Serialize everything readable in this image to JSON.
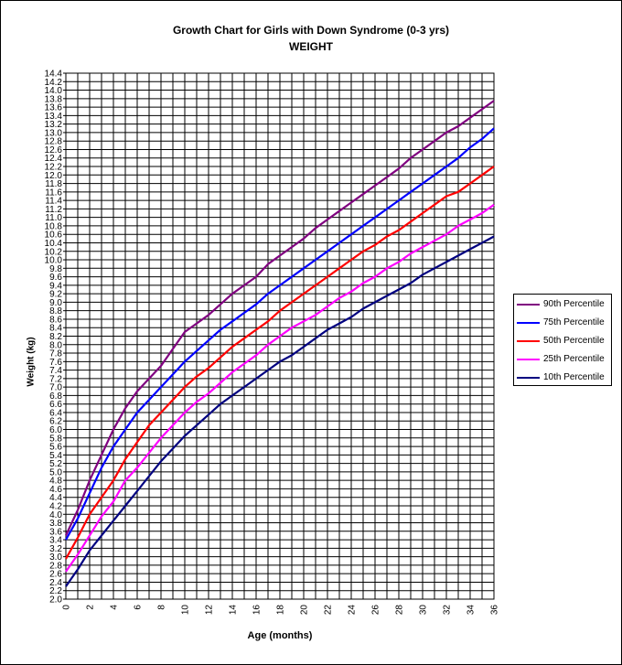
{
  "chart_data": {
    "type": "line",
    "title": "Growth Chart for Girls with Down Syndrome (0-3 yrs)",
    "subtitle": "WEIGHT",
    "xlabel": "Age (months)",
    "ylabel": "Weight  (kg)",
    "xlim": [
      0,
      36
    ],
    "ylim": [
      2.0,
      14.4
    ],
    "xticks": [
      0,
      2,
      4,
      6,
      8,
      10,
      12,
      14,
      16,
      18,
      20,
      22,
      24,
      26,
      28,
      30,
      32,
      34,
      36
    ],
    "yticks": [
      "2.0",
      "2.2",
      "2.4",
      "2.6",
      "2.8",
      "3.0",
      "3.2",
      "3.4",
      "3.6",
      "3.8",
      "4.0",
      "4.2",
      "4.4",
      "4.6",
      "4.8",
      "5.0",
      "5.2",
      "5.4",
      "5.6",
      "5.8",
      "6.0",
      "6.2",
      "6.4",
      "6.6",
      "6.8",
      "7.0",
      "7.2",
      "7.4",
      "7.6",
      "7.8",
      "8.0",
      "8.2",
      "8.4",
      "8.6",
      "8.8",
      "9.0",
      "9.2",
      "9.4",
      "9.6",
      "9.8",
      "10.0",
      "10.2",
      "10.4",
      "10.6",
      "10.8",
      "11.0",
      "11.2",
      "11.4",
      "11.6",
      "11.8",
      "12.0",
      "12.2",
      "12.4",
      "12.6",
      "12.8",
      "13.0",
      "13.2",
      "13.4",
      "13.6",
      "13.8",
      "14.0",
      "14.2",
      "14.4"
    ],
    "grid": true,
    "legend_position": "right",
    "x": [
      0,
      1,
      2,
      3,
      4,
      5,
      6,
      7,
      8,
      9,
      10,
      11,
      12,
      13,
      14,
      15,
      16,
      17,
      18,
      19,
      20,
      21,
      22,
      23,
      24,
      25,
      26,
      27,
      28,
      29,
      30,
      31,
      32,
      33,
      34,
      35,
      36
    ],
    "series": [
      {
        "name": "90th Percentile",
        "color": "#800080",
        "values": [
          3.5,
          4.1,
          4.8,
          5.4,
          6.0,
          6.5,
          6.9,
          7.2,
          7.5,
          7.9,
          8.3,
          8.5,
          8.7,
          8.95,
          9.2,
          9.4,
          9.6,
          9.9,
          10.1,
          10.3,
          10.5,
          10.75,
          10.95,
          11.15,
          11.35,
          11.55,
          11.75,
          11.95,
          12.15,
          12.4,
          12.6,
          12.8,
          13.0,
          13.15,
          13.35,
          13.55,
          13.75
        ]
      },
      {
        "name": "75th Percentile",
        "color": "#0000ff",
        "values": [
          3.4,
          3.9,
          4.5,
          5.1,
          5.6,
          6.0,
          6.4,
          6.7,
          7.0,
          7.3,
          7.6,
          7.85,
          8.1,
          8.35,
          8.55,
          8.75,
          8.95,
          9.2,
          9.4,
          9.6,
          9.8,
          10.0,
          10.2,
          10.4,
          10.6,
          10.8,
          11.0,
          11.2,
          11.4,
          11.6,
          11.8,
          12.0,
          12.2,
          12.4,
          12.65,
          12.85,
          13.1
        ]
      },
      {
        "name": "50th Percentile",
        "color": "#ff0000",
        "values": [
          2.95,
          3.45,
          4.0,
          4.4,
          4.8,
          5.3,
          5.7,
          6.1,
          6.4,
          6.7,
          7.0,
          7.25,
          7.45,
          7.7,
          7.95,
          8.15,
          8.35,
          8.55,
          8.8,
          9.0,
          9.2,
          9.4,
          9.6,
          9.8,
          10.0,
          10.2,
          10.35,
          10.55,
          10.7,
          10.9,
          11.1,
          11.3,
          11.5,
          11.6,
          11.8,
          12.0,
          12.2
        ]
      },
      {
        "name": "25th Percentile",
        "color": "#ff00ff",
        "values": [
          2.65,
          3.05,
          3.5,
          3.95,
          4.3,
          4.8,
          5.1,
          5.45,
          5.8,
          6.1,
          6.4,
          6.65,
          6.85,
          7.1,
          7.35,
          7.55,
          7.75,
          8.0,
          8.2,
          8.4,
          8.55,
          8.7,
          8.9,
          9.1,
          9.25,
          9.45,
          9.6,
          9.8,
          9.95,
          10.15,
          10.3,
          10.45,
          10.6,
          10.8,
          10.95,
          11.1,
          11.3
        ]
      },
      {
        "name": "10th Percentile",
        "color": "#000080",
        "values": [
          2.3,
          2.7,
          3.15,
          3.5,
          3.85,
          4.2,
          4.55,
          4.9,
          5.25,
          5.55,
          5.85,
          6.1,
          6.35,
          6.6,
          6.8,
          7.0,
          7.2,
          7.4,
          7.6,
          7.75,
          7.95,
          8.15,
          8.35,
          8.5,
          8.65,
          8.85,
          9.0,
          9.15,
          9.3,
          9.45,
          9.65,
          9.8,
          9.95,
          10.1,
          10.25,
          10.4,
          10.55
        ]
      }
    ]
  }
}
